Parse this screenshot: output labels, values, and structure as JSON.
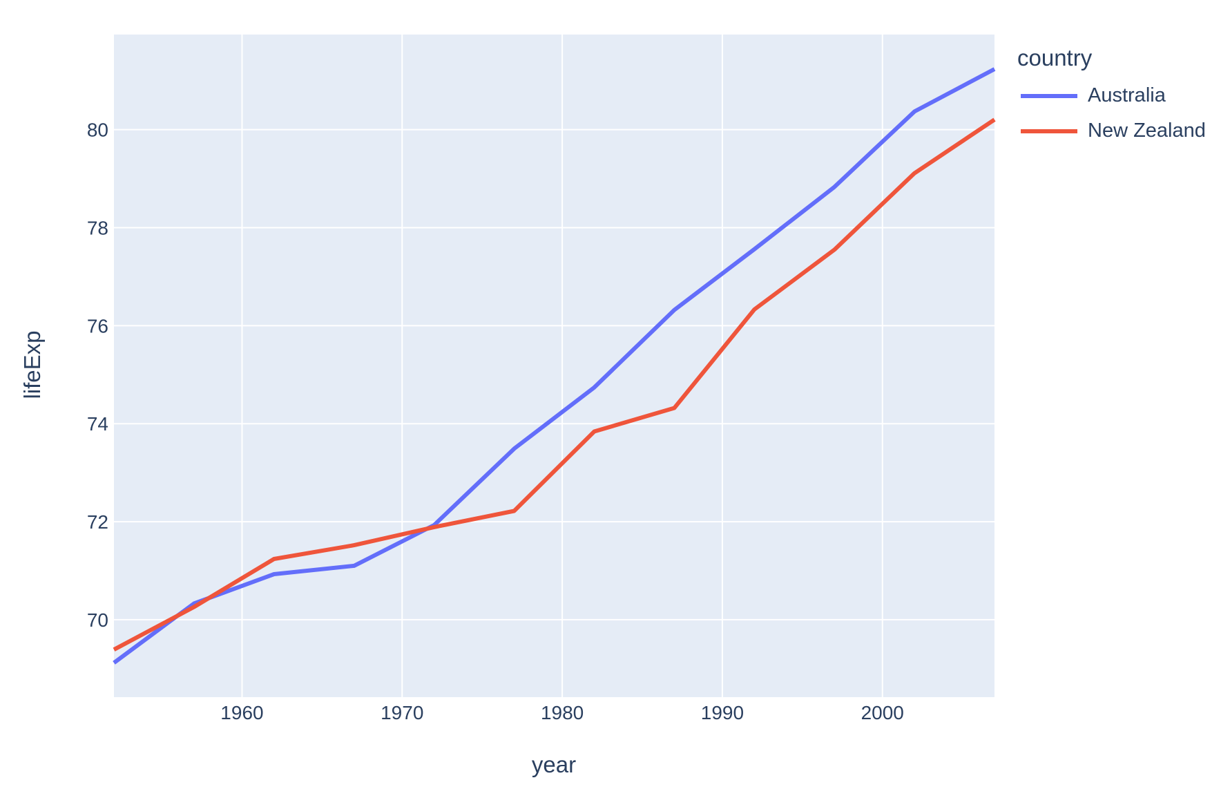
{
  "chart_data": {
    "type": "line",
    "title": "",
    "xlabel": "year",
    "ylabel": "lifeExp",
    "x": [
      1952,
      1957,
      1962,
      1967,
      1972,
      1977,
      1982,
      1987,
      1992,
      1997,
      2002,
      2007
    ],
    "series": [
      {
        "name": "Australia",
        "color": "#636EFA",
        "values": [
          69.12,
          70.33,
          70.93,
          71.1,
          71.93,
          73.49,
          74.74,
          76.32,
          77.56,
          78.83,
          80.37,
          81.235
        ]
      },
      {
        "name": "New Zealand",
        "color": "#EF553B",
        "values": [
          69.39,
          70.26,
          71.24,
          71.52,
          71.89,
          72.22,
          73.84,
          74.32,
          76.33,
          77.55,
          79.11,
          80.204
        ]
      }
    ],
    "xlim": [
      1952,
      2007
    ],
    "ylim": [
      68.42,
      81.94
    ],
    "xticks": [
      1960,
      1970,
      1980,
      1990,
      2000
    ],
    "yticks": [
      70,
      72,
      74,
      76,
      78,
      80
    ],
    "grid": true,
    "legend": {
      "title": "country",
      "position": "top-right-outside"
    },
    "colors": {
      "plot_bg": "#E5ECF6",
      "paper_bg": "#FFFFFF",
      "grid": "#FFFFFF",
      "text": "#2A3F5F"
    }
  }
}
